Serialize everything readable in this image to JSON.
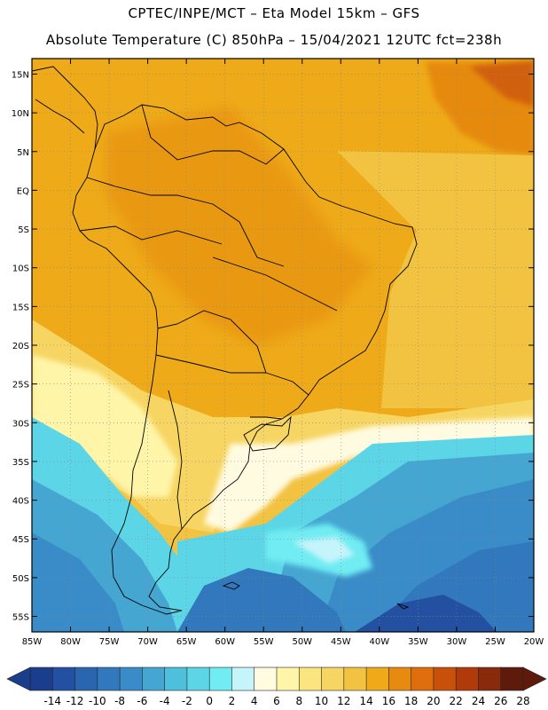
{
  "header": {
    "line1": "CPTEC/INPE/MCT –  Eta Model 15km – GFS",
    "line2": "Absolute Temperature (C) 850hPa – 15/04/2021 12UTC fct=238h"
  },
  "map": {
    "lon_range": [
      -85,
      -20
    ],
    "lat_range": [
      -57,
      17
    ],
    "lat_ticks": [
      "15N",
      "10N",
      "5N",
      "EQ",
      "5S",
      "10S",
      "15S",
      "20S",
      "25S",
      "30S",
      "35S",
      "40S",
      "45S",
      "50S",
      "55S"
    ],
    "lat_values": [
      15,
      10,
      5,
      0,
      -5,
      -10,
      -15,
      -20,
      -25,
      -30,
      -35,
      -40,
      -45,
      -50,
      -55
    ],
    "lon_ticks": [
      "85W",
      "80W",
      "75W",
      "70W",
      "65W",
      "60W",
      "55W",
      "50W",
      "45W",
      "40W",
      "35W",
      "30W",
      "25W",
      "20W"
    ],
    "lon_values": [
      -85,
      -80,
      -75,
      -70,
      -65,
      -60,
      -55,
      -50,
      -45,
      -40,
      -35,
      -30,
      -25,
      -20
    ],
    "grid": "dotted"
  },
  "colorbar": {
    "labels": [
      "-14",
      "-12",
      "-10",
      "-8",
      "-6",
      "-4",
      "-2",
      "0",
      "2",
      "4",
      "6",
      "8",
      "10",
      "12",
      "14",
      "16",
      "18",
      "20",
      "22",
      "24",
      "26",
      "28"
    ],
    "colors": [
      "#1a3e8c",
      "#2350a0",
      "#2a66b0",
      "#3278bd",
      "#3a8cc8",
      "#45a6d2",
      "#4fc0dc",
      "#5cd6e6",
      "#70ecf2",
      "#c6f4fb",
      "#fffbe0",
      "#fff5a8",
      "#fbe57f",
      "#f7d563",
      "#f2c241",
      "#eeaa19",
      "#e68a10",
      "#de6e0c",
      "#c8500a",
      "#b03a0a",
      "#8a2a0c",
      "#5e1a0a"
    ]
  }
}
